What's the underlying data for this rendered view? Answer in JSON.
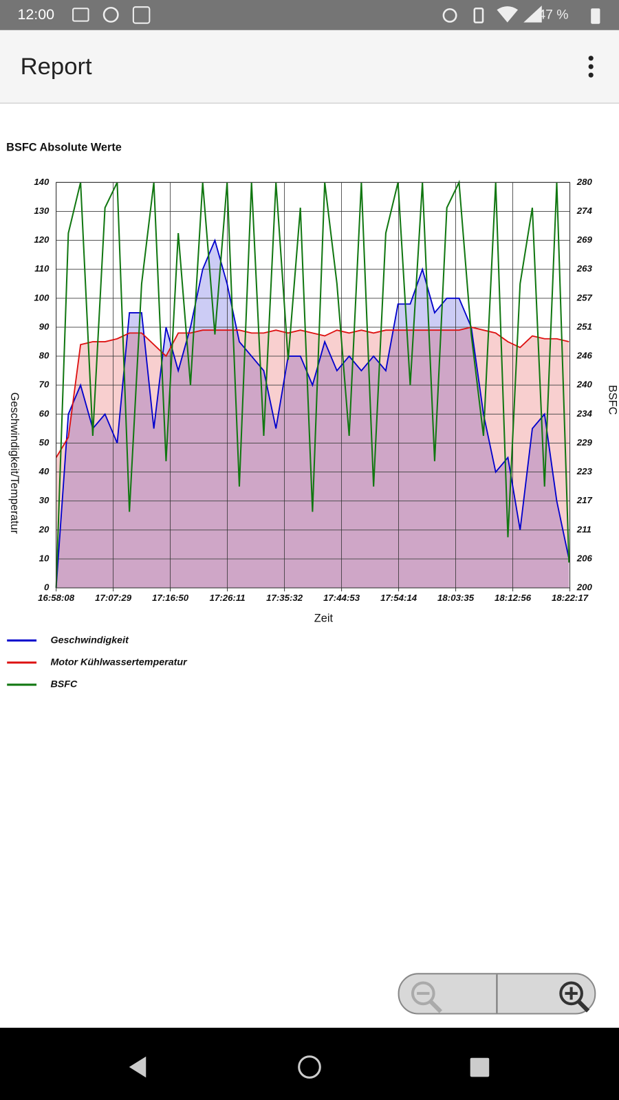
{
  "status_bar": {
    "time": "12:00",
    "battery": "47 %"
  },
  "app_bar": {
    "title": "Report"
  },
  "chart_data": {
    "type": "line",
    "title": "BSFC Absolute Werte",
    "x_label": "Zeit",
    "y_label": "Geschwindigkeit/Temperatur",
    "y2_label": "BSFC",
    "x": [
      "16:58:08",
      "17:00:08",
      "17:02:08",
      "17:04:08",
      "17:06:08",
      "17:08:08",
      "17:10:08",
      "17:12:08",
      "17:14:08",
      "17:16:08",
      "17:18:08",
      "17:20:08",
      "17:22:08",
      "17:24:08",
      "17:26:08",
      "17:28:08",
      "17:30:08",
      "17:32:08",
      "17:34:08",
      "17:36:08",
      "17:38:08",
      "17:40:08",
      "17:42:08",
      "17:44:08",
      "17:46:08",
      "17:48:08",
      "17:50:08",
      "17:52:08",
      "17:54:08",
      "17:56:08",
      "17:58:08",
      "18:00:08",
      "18:02:08",
      "18:04:08",
      "18:06:08",
      "18:08:08",
      "18:10:08",
      "18:12:08",
      "18:14:08",
      "18:16:08",
      "18:18:08",
      "18:20:08",
      "18:22:08"
    ],
    "xlim": [
      "16:58:08",
      "18:22:17"
    ],
    "xticks": [
      "16:58:08",
      "17:07:29",
      "17:16:50",
      "17:26:11",
      "17:35:32",
      "17:44:53",
      "17:54:14",
      "18:03:35",
      "18:12:56",
      "18:22:17"
    ],
    "ylim": [
      0,
      140
    ],
    "yticks": [
      0,
      10,
      20,
      30,
      40,
      50,
      60,
      70,
      80,
      90,
      100,
      110,
      120,
      130,
      140
    ],
    "y2lim": [
      200,
      280
    ],
    "y2ticks": [
      200,
      {
        "value": 205.714,
        "label": "206"
      },
      {
        "value": 211.429,
        "label": "211"
      },
      {
        "value": 217.143,
        "label": "217"
      },
      {
        "value": 222.857,
        "label": "223"
      },
      {
        "value": 228.571,
        "label": "229"
      },
      {
        "value": 234.286,
        "label": "234"
      },
      240,
      {
        "value": 245.714,
        "label": "246"
      },
      {
        "value": 251.429,
        "label": "251"
      },
      {
        "value": 257.143,
        "label": "257"
      },
      {
        "value": 262.857,
        "label": "263"
      },
      {
        "value": 268.571,
        "label": "269"
      },
      {
        "value": 274.286,
        "label": "274"
      },
      280
    ],
    "grid": true,
    "series": [
      {
        "name": "Geschwindigkeit",
        "color": "#0000cc",
        "fill": true,
        "values": [
          0,
          60,
          70,
          55,
          60,
          50,
          95,
          95,
          55,
          90,
          75,
          90,
          110,
          120,
          105,
          85,
          80,
          75,
          55,
          80,
          80,
          70,
          85,
          75,
          80,
          75,
          80,
          75,
          98,
          98,
          110,
          95,
          100,
          100,
          90,
          60,
          40,
          45,
          20,
          55,
          60,
          30,
          10
        ]
      },
      {
        "name": "Motor Kühlwassertemperatur",
        "color": "#dd1111",
        "fill": true,
        "values": [
          45,
          52,
          84,
          85,
          85,
          86,
          88,
          88,
          84,
          80,
          88,
          88,
          89,
          89,
          89,
          89,
          88,
          88,
          89,
          88,
          89,
          88,
          87,
          89,
          88,
          89,
          88,
          89,
          89,
          89,
          89,
          89,
          89,
          89,
          90,
          89,
          88,
          85,
          83,
          87,
          86,
          86,
          85
        ]
      },
      {
        "name": "BSFC",
        "color": "#117711",
        "axis": "y2",
        "fill": false,
        "values": [
          200,
          270,
          280,
          230,
          275,
          280,
          215,
          260,
          280,
          225,
          270,
          240,
          280,
          250,
          280,
          220,
          280,
          230,
          280,
          245,
          275,
          215,
          280,
          260,
          230,
          280,
          220,
          270,
          280,
          240,
          280,
          225,
          275,
          280,
          250,
          230,
          280,
          210,
          260,
          275,
          220,
          280,
          205
        ]
      }
    ]
  }
}
